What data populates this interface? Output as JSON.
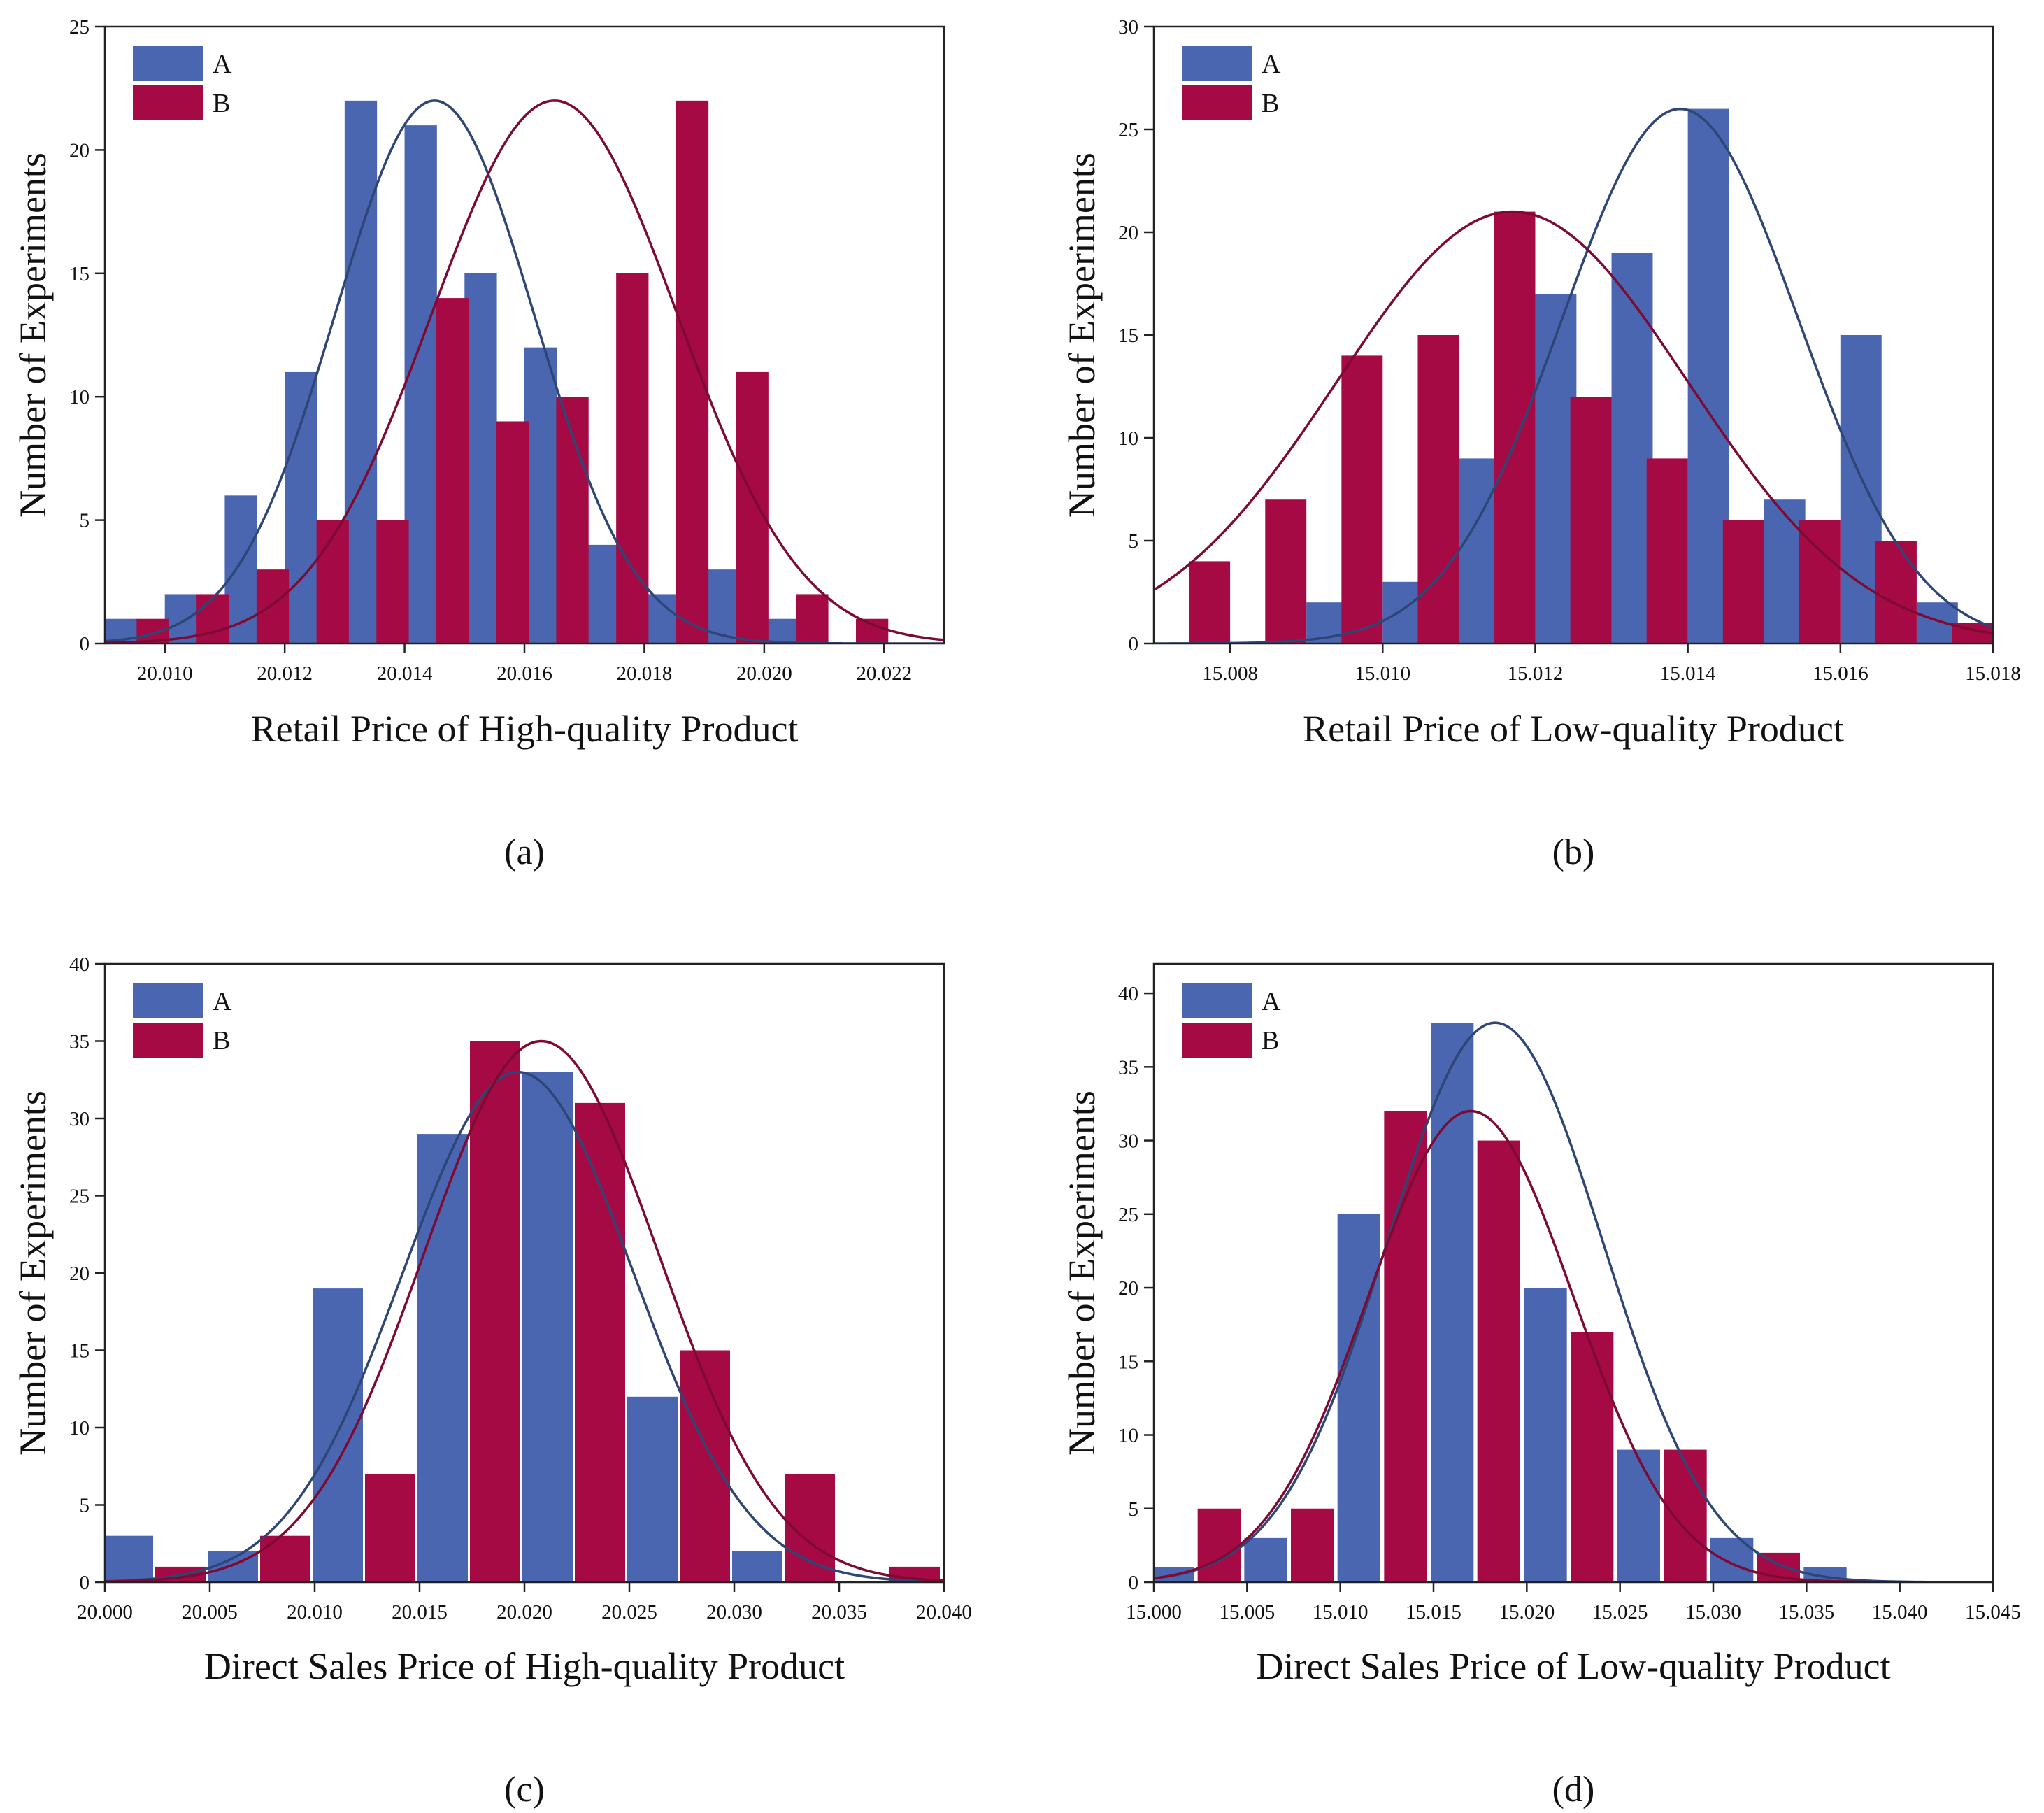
{
  "figure": {
    "ylabel": "Number of Experiments",
    "legend_placement": "top-left",
    "series_colors": {
      "A": "#4a66b0",
      "B": "#a50a45"
    },
    "curve_colors": {
      "A": "#2d4675",
      "B": "#7d0a33"
    }
  },
  "chart_data": [
    {
      "type": "bar",
      "panel_label": "(a)",
      "xlabel": "Retail Price of High-quality Product",
      "ylabel": "Number of Experiments",
      "xlim": [
        20.009,
        20.023
      ],
      "ylim": [
        0,
        25
      ],
      "xticks": [
        20.01,
        20.012,
        20.014,
        20.016,
        20.018,
        20.02,
        20.022
      ],
      "xtick_labels": [
        "20.010",
        "20.012",
        "20.014",
        "20.016",
        "20.018",
        "20.020",
        "20.022"
      ],
      "yticks": [
        0,
        5,
        10,
        15,
        20,
        25
      ],
      "ytick_labels": [
        "0",
        "5",
        "10",
        "15",
        "20",
        "25"
      ],
      "bar_width": 0.00054,
      "series": [
        {
          "name": "A",
          "x": [
            20.00927,
            20.01027,
            20.01127,
            20.01227,
            20.01327,
            20.01427,
            20.01527,
            20.01627,
            20.01727,
            20.01827,
            20.01927,
            20.02027
          ],
          "values": [
            1,
            2,
            6,
            11,
            22,
            21,
            15,
            12,
            4,
            2,
            3,
            1
          ],
          "fit": {
            "mean": 20.0145,
            "sd": 0.00166,
            "peak": 22
          }
        },
        {
          "name": "B",
          "x": [
            20.0098,
            20.0108,
            20.0118,
            20.0128,
            20.0138,
            20.0148,
            20.0158,
            20.0168,
            20.0178,
            20.0188,
            20.0198,
            20.0208,
            20.0218
          ],
          "values": [
            1,
            2,
            3,
            5,
            5,
            14,
            9,
            10,
            15,
            22,
            11,
            2,
            1
          ],
          "fit": {
            "mean": 20.0165,
            "sd": 0.00205,
            "peak": 22
          }
        }
      ]
    },
    {
      "type": "bar",
      "panel_label": "(b)",
      "xlabel": "Retail Price of Low-quality Product",
      "ylabel": "Number of Experiments",
      "xlim": [
        15.007,
        15.018
      ],
      "ylim": [
        0,
        30
      ],
      "xticks": [
        15.008,
        15.01,
        15.012,
        15.014,
        15.016,
        15.018
      ],
      "xtick_labels": [
        "15.008",
        "15.010",
        "15.012",
        "15.014",
        "15.016",
        "15.018"
      ],
      "yticks": [
        0,
        5,
        10,
        15,
        20,
        25,
        30
      ],
      "ytick_labels": [
        "0",
        "5",
        "10",
        "15",
        "20",
        "25",
        "30"
      ],
      "bar_width": 0.00054,
      "series": [
        {
          "name": "A",
          "x": [
            15.00927,
            15.01027,
            15.01127,
            15.01227,
            15.01327,
            15.01427,
            15.01527,
            15.01627,
            15.01727
          ],
          "values": [
            2,
            3,
            9,
            17,
            19,
            26,
            7,
            15,
            2
          ],
          "fit": {
            "mean": 15.0139,
            "sd": 0.00155,
            "peak": 26
          }
        },
        {
          "name": "B",
          "x": [
            15.00773,
            15.00873,
            15.00973,
            15.01073,
            15.01173,
            15.01273,
            15.01373,
            15.01473,
            15.01573,
            15.01673,
            15.01773
          ],
          "values": [
            4,
            7,
            14,
            15,
            21,
            12,
            9,
            6,
            6,
            5,
            1
          ],
          "fit": {
            "mean": 15.0117,
            "sd": 0.0023,
            "peak": 21
          }
        }
      ]
    },
    {
      "type": "bar",
      "panel_label": "(c)",
      "xlabel": "Direct Sales Price of High-quality Product",
      "ylabel": "Number of Experiments",
      "xlim": [
        20.0,
        20.04
      ],
      "ylim": [
        0,
        40
      ],
      "xticks": [
        20.0,
        20.005,
        20.01,
        20.015,
        20.02,
        20.025,
        20.03,
        20.035,
        20.04
      ],
      "xtick_labels": [
        "20.000",
        "20.005",
        "20.010",
        "20.015",
        "20.020",
        "20.025",
        "20.030",
        "20.035",
        "20.040"
      ],
      "yticks": [
        0,
        5,
        10,
        15,
        20,
        25,
        30,
        35,
        40
      ],
      "ytick_labels": [
        "0",
        "5",
        "10",
        "15",
        "20",
        "25",
        "30",
        "35",
        "40"
      ],
      "bar_width": 0.0024,
      "series": [
        {
          "name": "A",
          "x": [
            20.0011,
            20.0061,
            20.0111,
            20.0161,
            20.0211,
            20.0261,
            20.0311,
            20.0361,
            20.0386
          ],
          "values": [
            3,
            2,
            19,
            29,
            33,
            12,
            2,
            0,
            0
          ],
          "fit": {
            "mean": 20.0197,
            "sd": 0.0055,
            "peak": 33
          }
        },
        {
          "name": "B",
          "x": [
            20.0036,
            20.0086,
            20.0136,
            20.0186,
            20.0236,
            20.0286,
            20.0336,
            20.0386
          ],
          "values": [
            1,
            3,
            7,
            35,
            31,
            15,
            7,
            1
          ],
          "fit": {
            "mean": 20.0208,
            "sd": 0.0056,
            "peak": 35
          }
        }
      ]
    },
    {
      "type": "bar",
      "panel_label": "(d)",
      "xlabel": "Direct Sales Price of Low-quality Product",
      "ylabel": "Number of Experiments",
      "xlim": [
        15.0,
        15.045
      ],
      "ylim": [
        0,
        42
      ],
      "xticks": [
        15.0,
        15.005,
        15.01,
        15.015,
        15.02,
        15.025,
        15.03,
        15.035,
        15.04,
        15.045
      ],
      "xtick_labels": [
        "15.000",
        "15.005",
        "15.010",
        "15.015",
        "15.020",
        "15.025",
        "15.030",
        "15.035",
        "15.040",
        "15.045"
      ],
      "yticks": [
        0,
        5,
        10,
        15,
        20,
        25,
        30,
        35,
        40
      ],
      "ytick_labels": [
        "0",
        "5",
        "10",
        "15",
        "20",
        "25",
        "30",
        "35",
        "40"
      ],
      "bar_width": 0.0023,
      "series": [
        {
          "name": "A",
          "x": [
            15.001,
            15.006,
            15.011,
            15.016,
            15.021,
            15.026,
            15.031,
            15.036
          ],
          "values": [
            1,
            3,
            25,
            38,
            20,
            9,
            3,
            1
          ],
          "fit": {
            "mean": 15.0183,
            "sd": 0.0058,
            "peak": 38
          }
        },
        {
          "name": "B",
          "x": [
            15.0035,
            15.0085,
            15.0135,
            15.0185,
            15.0235,
            15.0285,
            15.0335
          ],
          "values": [
            5,
            5,
            32,
            30,
            17,
            9,
            2
          ],
          "fit": {
            "mean": 15.017,
            "sd": 0.0055,
            "peak": 32
          }
        }
      ]
    }
  ]
}
